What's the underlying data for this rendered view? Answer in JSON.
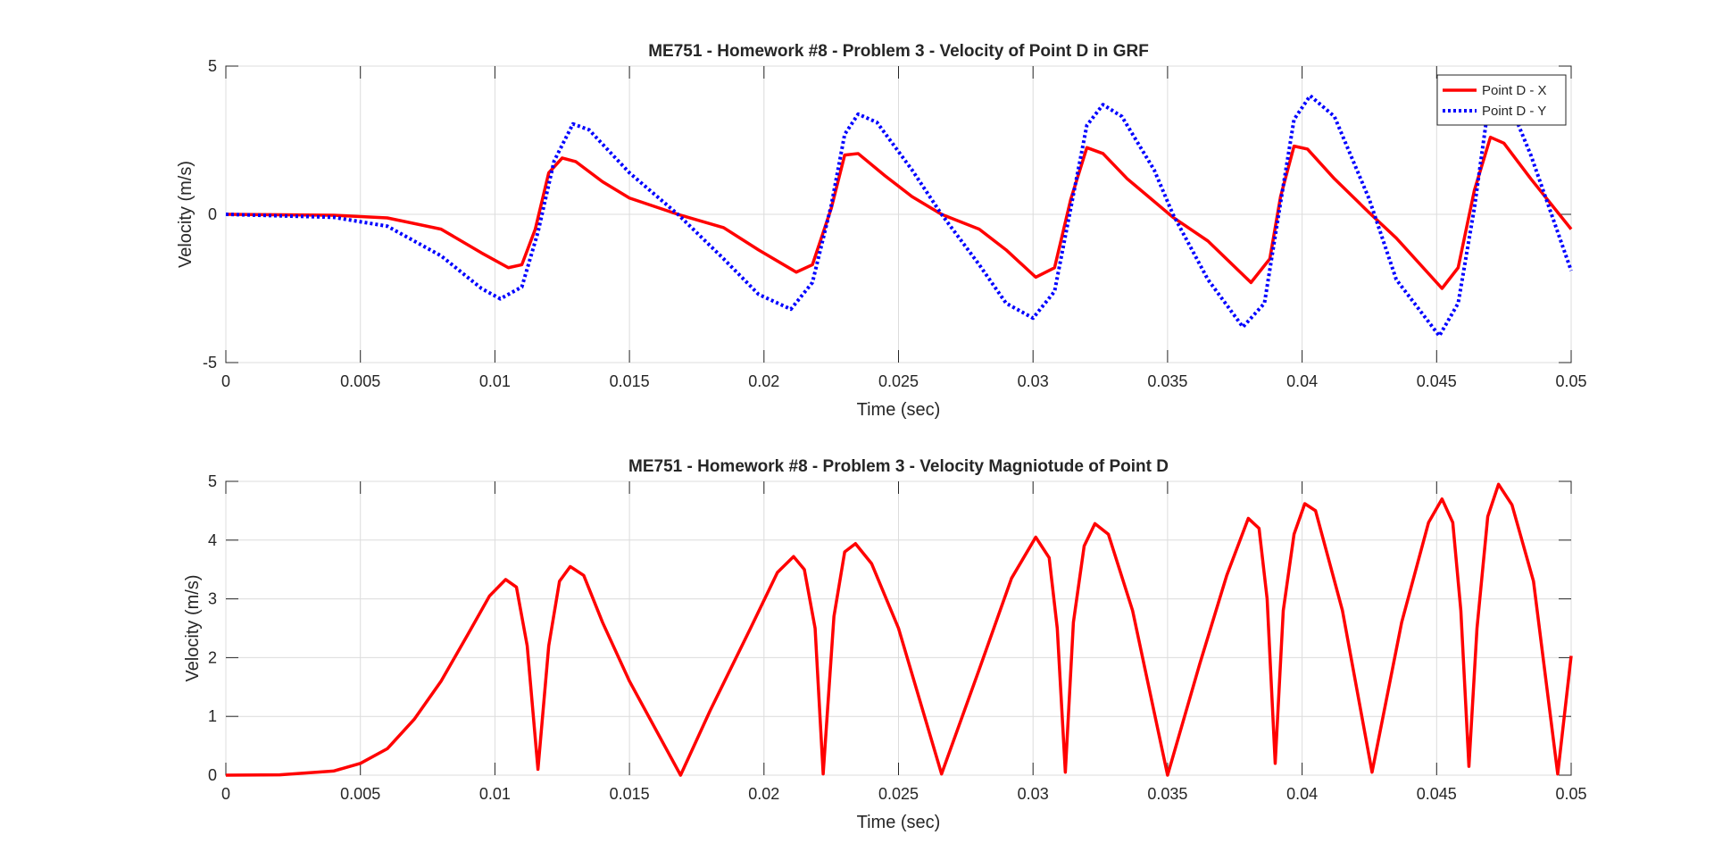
{
  "chart_data": [
    {
      "type": "line",
      "title": "ME751 - Homework #8 - Problem 3 - Velocity of Point D in GRF",
      "xlabel": "Time (sec)",
      "ylabel": "Velocity (m/s)",
      "xlim": [
        0,
        0.05
      ],
      "ylim": [
        -5,
        5
      ],
      "xticks": [
        0,
        0.005,
        0.01,
        0.015,
        0.02,
        0.025,
        0.03,
        0.035,
        0.04,
        0.045,
        0.05
      ],
      "xtick_labels": [
        "0",
        "0.005",
        "0.01",
        "0.015",
        "0.02",
        "0.025",
        "0.03",
        "0.035",
        "0.04",
        "0.045",
        "0.05"
      ],
      "yticks": [
        -5,
        0,
        5
      ],
      "ytick_labels": [
        "-5",
        "0",
        "5"
      ],
      "grid": true,
      "legend": "top-right",
      "series": [
        {
          "name": "Point D - X",
          "color": "#ff0000",
          "style": "solid",
          "points": [
            [
              0,
              0
            ],
            [
              0.004,
              -0.03
            ],
            [
              0.006,
              -0.12
            ],
            [
              0.008,
              -0.5
            ],
            [
              0.0095,
              -1.3
            ],
            [
              0.0105,
              -1.8
            ],
            [
              0.011,
              -1.7
            ],
            [
              0.0115,
              -0.5
            ],
            [
              0.012,
              1.4
            ],
            [
              0.0125,
              1.9
            ],
            [
              0.013,
              1.78
            ],
            [
              0.014,
              1.1
            ],
            [
              0.015,
              0.55
            ],
            [
              0.0168,
              0
            ],
            [
              0.0185,
              -0.45
            ],
            [
              0.0198,
              -1.2
            ],
            [
              0.0212,
              -1.95
            ],
            [
              0.0218,
              -1.7
            ],
            [
              0.0225,
              0.2
            ],
            [
              0.023,
              2.0
            ],
            [
              0.0235,
              2.05
            ],
            [
              0.0245,
              1.3
            ],
            [
              0.0255,
              0.6
            ],
            [
              0.0266,
              0
            ],
            [
              0.028,
              -0.5
            ],
            [
              0.029,
              -1.2
            ],
            [
              0.0301,
              -2.12
            ],
            [
              0.0308,
              -1.8
            ],
            [
              0.0314,
              0.5
            ],
            [
              0.032,
              2.25
            ],
            [
              0.0326,
              2.05
            ],
            [
              0.0335,
              1.2
            ],
            [
              0.0352,
              -0.1
            ],
            [
              0.0365,
              -0.9
            ],
            [
              0.0381,
              -2.3
            ],
            [
              0.0388,
              -1.5
            ],
            [
              0.0392,
              0.6
            ],
            [
              0.0397,
              2.3
            ],
            [
              0.0402,
              2.2
            ],
            [
              0.0412,
              1.2
            ],
            [
              0.0425,
              0.05
            ],
            [
              0.0435,
              -0.8
            ],
            [
              0.0452,
              -2.5
            ],
            [
              0.0458,
              -1.8
            ],
            [
              0.0464,
              0.8
            ],
            [
              0.047,
              2.6
            ],
            [
              0.0475,
              2.4
            ],
            [
              0.0485,
              1.2
            ],
            [
              0.05,
              -0.5
            ]
          ]
        },
        {
          "name": "Point D - Y",
          "color": "#0000ff",
          "style": "dotted",
          "points": [
            [
              0,
              0
            ],
            [
              0.004,
              -0.1
            ],
            [
              0.006,
              -0.4
            ],
            [
              0.008,
              -1.4
            ],
            [
              0.0095,
              -2.5
            ],
            [
              0.0102,
              -2.85
            ],
            [
              0.011,
              -2.45
            ],
            [
              0.0116,
              -0.6
            ],
            [
              0.0122,
              1.8
            ],
            [
              0.0129,
              3.05
            ],
            [
              0.0135,
              2.85
            ],
            [
              0.015,
              1.4
            ],
            [
              0.0168,
              0
            ],
            [
              0.0185,
              -1.5
            ],
            [
              0.0198,
              -2.7
            ],
            [
              0.021,
              -3.2
            ],
            [
              0.0218,
              -2.3
            ],
            [
              0.0225,
              0.3
            ],
            [
              0.023,
              2.7
            ],
            [
              0.0235,
              3.38
            ],
            [
              0.0242,
              3.1
            ],
            [
              0.0255,
              1.5
            ],
            [
              0.0266,
              0
            ],
            [
              0.028,
              -1.7
            ],
            [
              0.029,
              -3.0
            ],
            [
              0.03,
              -3.5
            ],
            [
              0.0308,
              -2.6
            ],
            [
              0.0314,
              0.2
            ],
            [
              0.032,
              3.0
            ],
            [
              0.0326,
              3.7
            ],
            [
              0.0333,
              3.3
            ],
            [
              0.0345,
              1.5
            ],
            [
              0.0352,
              0
            ],
            [
              0.0365,
              -2.2
            ],
            [
              0.0378,
              -3.8
            ],
            [
              0.0386,
              -3.0
            ],
            [
              0.0392,
              0.4
            ],
            [
              0.0397,
              3.2
            ],
            [
              0.0403,
              4.0
            ],
            [
              0.0412,
              3.3
            ],
            [
              0.0425,
              0.5
            ],
            [
              0.0435,
              -2.2
            ],
            [
              0.0451,
              -4.1
            ],
            [
              0.0458,
              -3.0
            ],
            [
              0.0464,
              0.2
            ],
            [
              0.0469,
              3.5
            ],
            [
              0.0475,
              4.2
            ],
            [
              0.0485,
              2.0
            ],
            [
              0.05,
              -1.9
            ]
          ]
        }
      ]
    },
    {
      "type": "line",
      "title": "ME751 - Homework #8 - Problem 3 - Velocity Magniotude of Point D",
      "xlabel": "Time (sec)",
      "ylabel": "Velocity (m/s)",
      "xlim": [
        0,
        0.05
      ],
      "ylim": [
        0,
        5
      ],
      "xticks": [
        0,
        0.005,
        0.01,
        0.015,
        0.02,
        0.025,
        0.03,
        0.035,
        0.04,
        0.045,
        0.05
      ],
      "xtick_labels": [
        "0",
        "0.005",
        "0.01",
        "0.015",
        "0.02",
        "0.025",
        "0.03",
        "0.035",
        "0.04",
        "0.045",
        "0.05"
      ],
      "yticks": [
        0,
        1,
        2,
        3,
        4,
        5
      ],
      "ytick_labels": [
        "0",
        "1",
        "2",
        "3",
        "4",
        "5"
      ],
      "grid": true,
      "series": [
        {
          "color": "#ff0000",
          "style": "solid",
          "points": [
            [
              0,
              0
            ],
            [
              0.002,
              0.005
            ],
            [
              0.004,
              0.07
            ],
            [
              0.005,
              0.2
            ],
            [
              0.006,
              0.45
            ],
            [
              0.007,
              0.95
            ],
            [
              0.008,
              1.6
            ],
            [
              0.009,
              2.4
            ],
            [
              0.0098,
              3.05
            ],
            [
              0.0104,
              3.33
            ],
            [
              0.0108,
              3.2
            ],
            [
              0.0112,
              2.2
            ],
            [
              0.0116,
              0.1
            ],
            [
              0.012,
              2.2
            ],
            [
              0.0124,
              3.3
            ],
            [
              0.0128,
              3.55
            ],
            [
              0.0133,
              3.4
            ],
            [
              0.014,
              2.6
            ],
            [
              0.015,
              1.6
            ],
            [
              0.0169,
              0
            ],
            [
              0.018,
              1.1
            ],
            [
              0.0195,
              2.5
            ],
            [
              0.0205,
              3.45
            ],
            [
              0.0211,
              3.72
            ],
            [
              0.0215,
              3.5
            ],
            [
              0.0219,
              2.5
            ],
            [
              0.0222,
              0.02
            ],
            [
              0.0226,
              2.7
            ],
            [
              0.023,
              3.8
            ],
            [
              0.0234,
              3.94
            ],
            [
              0.024,
              3.6
            ],
            [
              0.025,
              2.5
            ],
            [
              0.0266,
              0.02
            ],
            [
              0.028,
              1.8
            ],
            [
              0.0292,
              3.35
            ],
            [
              0.0301,
              4.05
            ],
            [
              0.0306,
              3.7
            ],
            [
              0.0309,
              2.5
            ],
            [
              0.0312,
              0.05
            ],
            [
              0.0315,
              2.6
            ],
            [
              0.0319,
              3.9
            ],
            [
              0.0323,
              4.28
            ],
            [
              0.0328,
              4.1
            ],
            [
              0.0337,
              2.8
            ],
            [
              0.035,
              0
            ],
            [
              0.0362,
              1.9
            ],
            [
              0.0372,
              3.4
            ],
            [
              0.038,
              4.37
            ],
            [
              0.0384,
              4.2
            ],
            [
              0.0387,
              3.0
            ],
            [
              0.039,
              0.2
            ],
            [
              0.0393,
              2.8
            ],
            [
              0.0397,
              4.1
            ],
            [
              0.0401,
              4.62
            ],
            [
              0.0405,
              4.5
            ],
            [
              0.0415,
              2.8
            ],
            [
              0.0426,
              0.05
            ],
            [
              0.0437,
              2.6
            ],
            [
              0.0447,
              4.3
            ],
            [
              0.0452,
              4.7
            ],
            [
              0.0456,
              4.3
            ],
            [
              0.0459,
              2.8
            ],
            [
              0.0462,
              0.15
            ],
            [
              0.0465,
              2.5
            ],
            [
              0.0469,
              4.4
            ],
            [
              0.0473,
              4.95
            ],
            [
              0.0478,
              4.6
            ],
            [
              0.0486,
              3.3
            ],
            [
              0.0495,
              0.02
            ],
            [
              0.05,
              2.03
            ]
          ]
        }
      ]
    }
  ]
}
